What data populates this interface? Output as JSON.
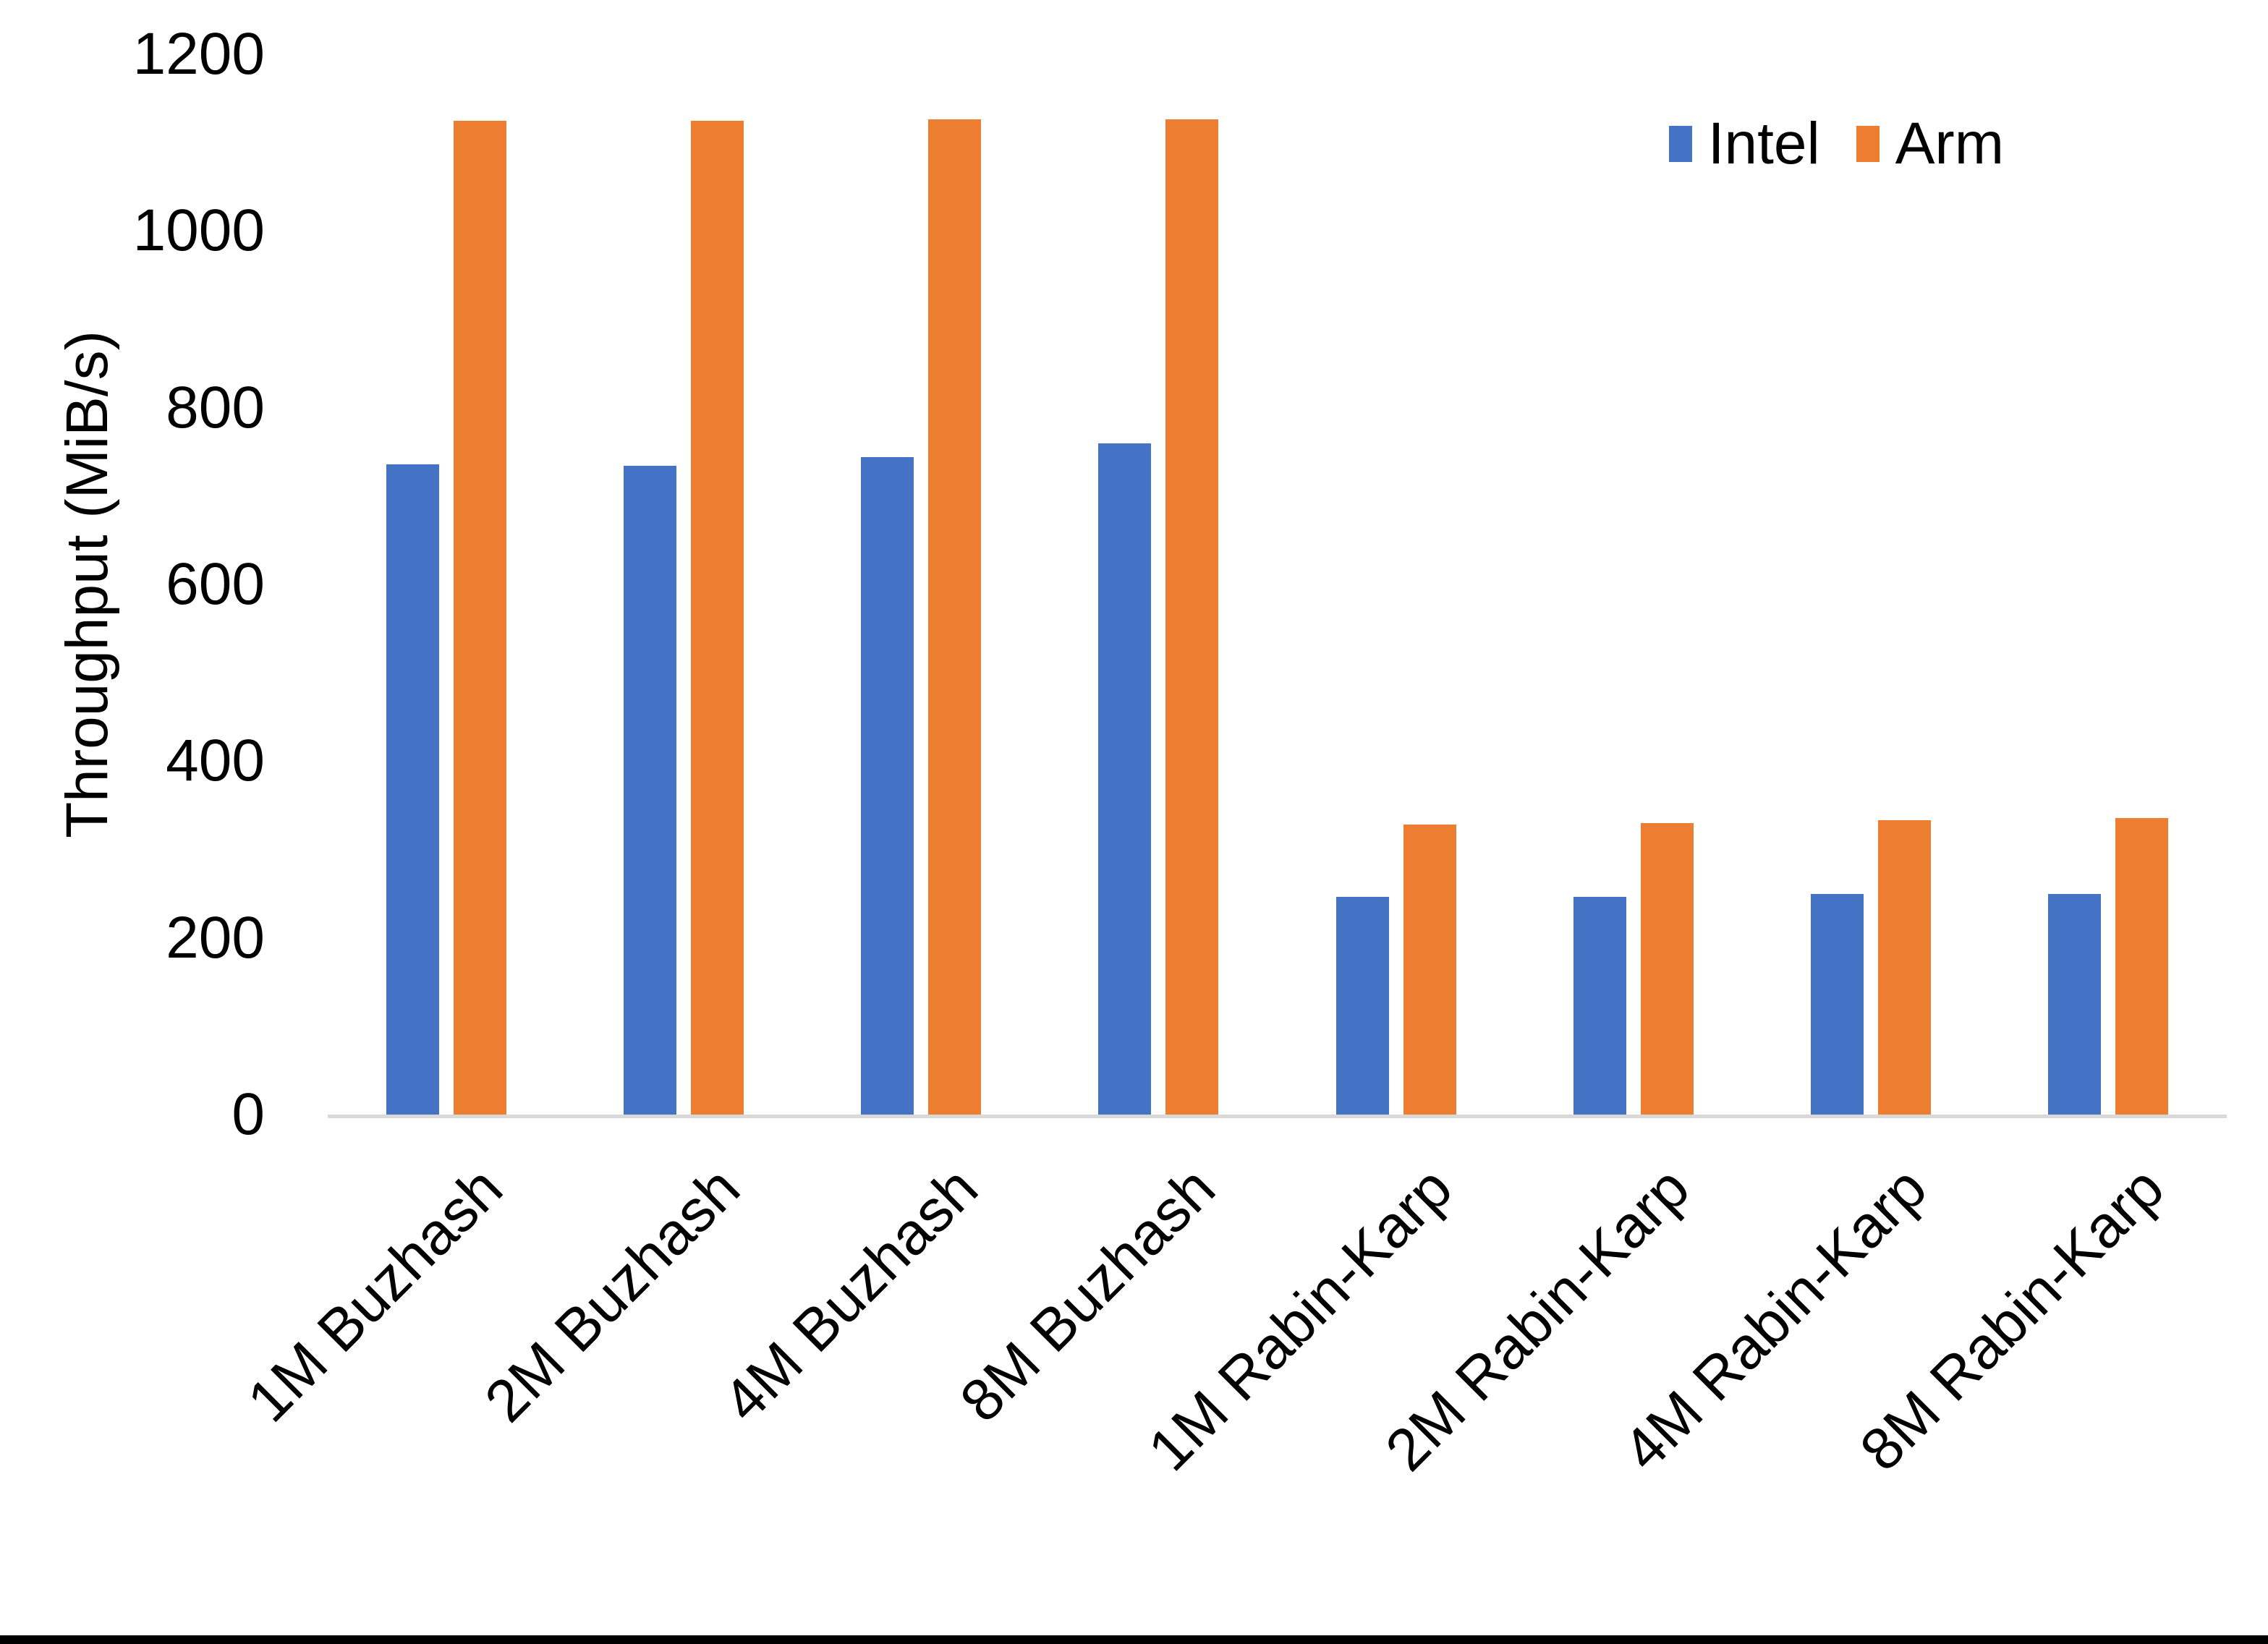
{
  "figure": {
    "background": "#FFFFFF",
    "bottom_edge_color": "#000000"
  },
  "chart_data": {
    "type": "bar",
    "title": "",
    "categories": [
      "1M Buzhash",
      "2M Buzhash",
      "4M Buzhash",
      "8M Buzhash",
      "1M Rabin-Karp",
      "2M Rabin-Karp",
      "4M Rabin-Karp",
      "8M Rabin-Karp"
    ],
    "series": [
      {
        "name": "Intel",
        "color": "#4472C4",
        "values": [
          736,
          734,
          744,
          760,
          246,
          246,
          250,
          250
        ]
      },
      {
        "name": "Arm",
        "color": "#ED7D31",
        "values": [
          1125,
          1125,
          1126,
          1126,
          328,
          330,
          333,
          336
        ]
      }
    ],
    "xlabel": "",
    "ylabel": "Throughput (MiB/s)",
    "ylim": [
      0,
      1200
    ],
    "yticks": [
      0,
      200,
      400,
      600,
      800,
      1000,
      1200
    ],
    "grid": false,
    "legend_position": "top-right",
    "axis_line_color": "#D9D9D9",
    "text_color": "#000000"
  }
}
